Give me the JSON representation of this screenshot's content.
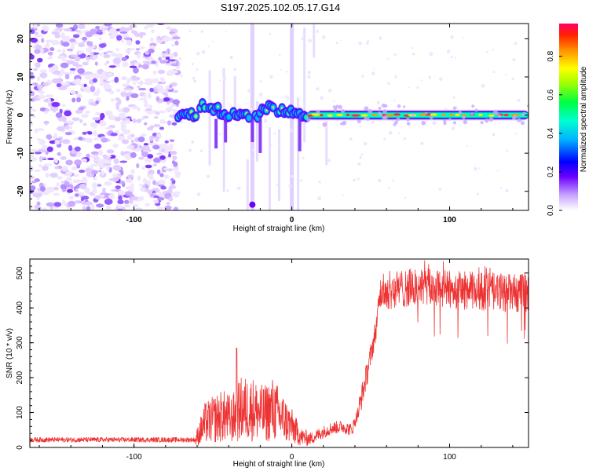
{
  "title": "S197.2025.102.05.17.G14",
  "chart_data": [
    {
      "type": "heatmap",
      "xlabel": "Height of straight line (km)",
      "ylabel": "Frequency (Hz)",
      "xlim": [
        -166,
        150
      ],
      "ylim": [
        -25,
        24
      ],
      "xticks": [
        -100,
        0,
        100
      ],
      "yticks": [
        -20,
        -10,
        0,
        10,
        20
      ],
      "colorbar": {
        "label": "Normalized spectral amplitude",
        "range": [
          0,
          0.97
        ],
        "ticks": [
          0.0,
          0.2,
          0.4,
          0.6,
          0.8
        ]
      },
      "features": [
        {
          "region": "noise",
          "x": [
            -166,
            -72
          ],
          "freq_range": [
            -25,
            24
          ]
        },
        {
          "region": "fragmented signal",
          "x": [
            -72,
            10
          ],
          "freq": 0
        },
        {
          "region": "steady tone",
          "x": [
            10,
            150
          ],
          "freq": 0
        }
      ]
    },
    {
      "type": "line",
      "xlabel": "Height of straight line (km)",
      "ylabel": "SNR (10 * v/v)",
      "xlim": [
        -166,
        150
      ],
      "ylim": [
        0,
        540
      ],
      "xticks": [
        -100,
        0,
        100
      ],
      "yticks": [
        0,
        100,
        200,
        300,
        400,
        500
      ],
      "color": "#ee3333",
      "profile": [
        {
          "x": -166,
          "y": 22
        },
        {
          "x": -61,
          "y": 22
        },
        {
          "x": -55,
          "y": 70
        },
        {
          "x": -44,
          "y": 90
        },
        {
          "x": -38,
          "y": 80
        },
        {
          "x": -32,
          "y": 110
        },
        {
          "x": -25,
          "y": 110
        },
        {
          "x": -18,
          "y": 95
        },
        {
          "x": -12,
          "y": 110
        },
        {
          "x": -6,
          "y": 85
        },
        {
          "x": 0,
          "y": 60
        },
        {
          "x": 6,
          "y": 30
        },
        {
          "x": 12,
          "y": 25
        },
        {
          "x": 18,
          "y": 40
        },
        {
          "x": 25,
          "y": 55
        },
        {
          "x": 32,
          "y": 60
        },
        {
          "x": 38,
          "y": 50
        },
        {
          "x": 42,
          "y": 100
        },
        {
          "x": 48,
          "y": 220
        },
        {
          "x": 53,
          "y": 330
        },
        {
          "x": 56,
          "y": 440
        },
        {
          "x": 60,
          "y": 450
        },
        {
          "x": 80,
          "y": 460
        },
        {
          "x": 110,
          "y": 450
        },
        {
          "x": 150,
          "y": 440
        }
      ],
      "peak": {
        "x": -35,
        "y": 285
      }
    }
  ]
}
